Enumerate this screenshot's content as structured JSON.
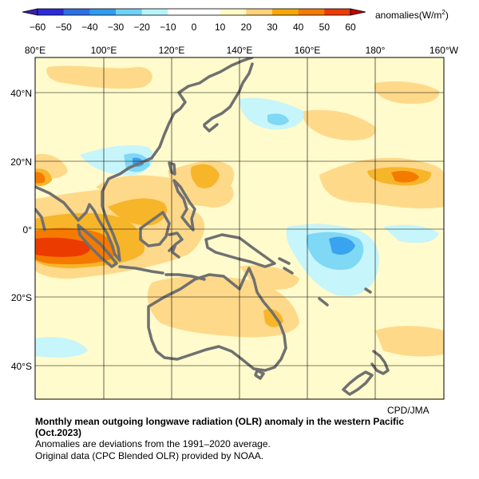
{
  "colorbar": {
    "unit_prefix": "anomalies(W/m",
    "unit_sup": "2",
    "unit_suffix": ")",
    "ticks": [
      "−60",
      "−50",
      "−40",
      "−30",
      "−20",
      "−10",
      "0",
      "10",
      "20",
      "30",
      "40",
      "50",
      "60"
    ],
    "colors": [
      "#2b2bd8",
      "#2d6fe6",
      "#2f9cf2",
      "#6fd1f7",
      "#b8f3fb",
      "#ffffff",
      "#ffffff",
      "#fff9c6",
      "#ffd27a",
      "#f6a800",
      "#f47b00",
      "#ed3b00"
    ]
  },
  "map": {
    "lon_labels": [
      "80°E",
      "100°E",
      "120°E",
      "140°E",
      "160°E",
      "180°",
      "160°W"
    ],
    "lat_labels": [
      "40°N",
      "20°N",
      "0°",
      "20°S",
      "40°S"
    ],
    "background_color": "#fffbcc",
    "coast_color": "#707070"
  },
  "credit": "CPD/JMA",
  "caption": {
    "title_line1": "Monthly mean outgoing longwave radiation (OLR) anomaly in the western Pacific",
    "title_line2": "(Oct.2023)",
    "line1": "Anomalies are deviations from the 1991–2020 average.",
    "line2": "Original data (CPC Blended OLR) provided by NOAA."
  }
}
